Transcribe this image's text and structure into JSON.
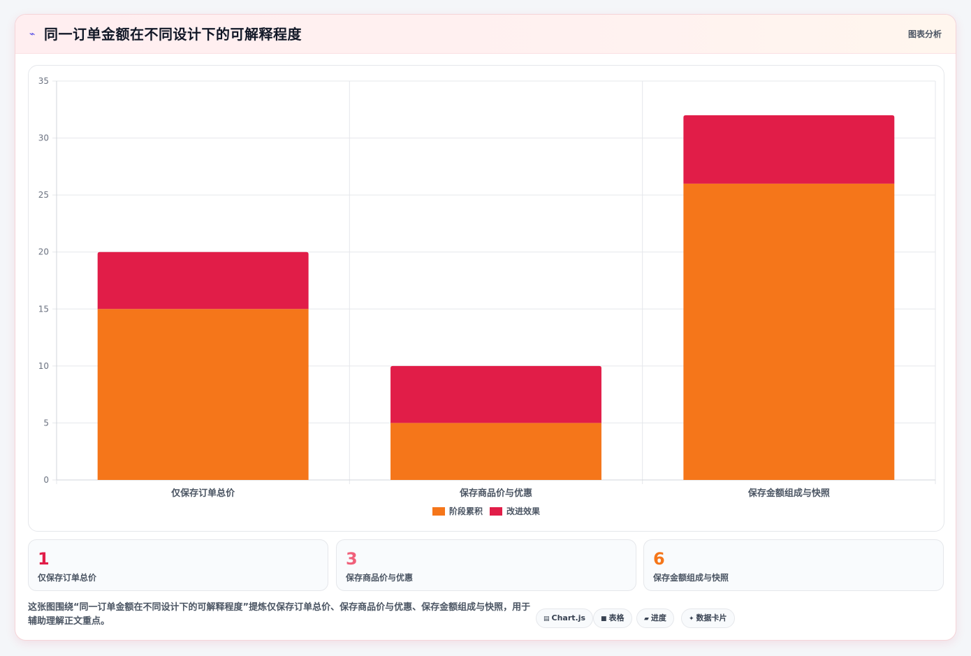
{
  "header": {
    "icon": "lightning-icon",
    "title": "同一订单金额在不同设计下的可解释程度",
    "tag": "图表分析"
  },
  "chart_data": {
    "type": "bar",
    "stacked": true,
    "categories": [
      "仅保存订单总价",
      "保存商品价与优惠",
      "保存金额组成与快照"
    ],
    "series": [
      {
        "name": "阶段累积",
        "values": [
          15,
          5,
          26
        ],
        "color": "#f5761a"
      },
      {
        "name": "改进效果",
        "values": [
          5,
          5,
          6
        ],
        "color": "#e11d48"
      }
    ],
    "ylim": [
      0,
      35
    ],
    "yticks": [
      0,
      5,
      10,
      15,
      20,
      25,
      30,
      35
    ],
    "grid": true,
    "legend": "bottom"
  },
  "stats": [
    {
      "value": "1",
      "label": "仅保存订单总价",
      "color": "#e11d48"
    },
    {
      "value": "3",
      "label": "保存商品价与优惠",
      "color": "#f0607a"
    },
    {
      "value": "6",
      "label": "保存金额组成与快照",
      "color": "#f5761a"
    }
  ],
  "caption": "这张图围绕“同一订单金额在不同设计下的可解释程度”提炼仅保存订单总价、保存商品价与优惠、保存金额组成与快照，用于辅助理解正文重点。",
  "chips": [
    {
      "icon": "chart-icon",
      "glyph": "▤",
      "label": "Chart.js"
    },
    {
      "icon": "table-icon",
      "glyph": "■",
      "label": "表格"
    },
    {
      "icon": "progress-icon",
      "glyph": "▰",
      "label": "进度"
    },
    {
      "icon": "sparkle-icon",
      "glyph": "✦",
      "label": "数据卡片"
    }
  ]
}
